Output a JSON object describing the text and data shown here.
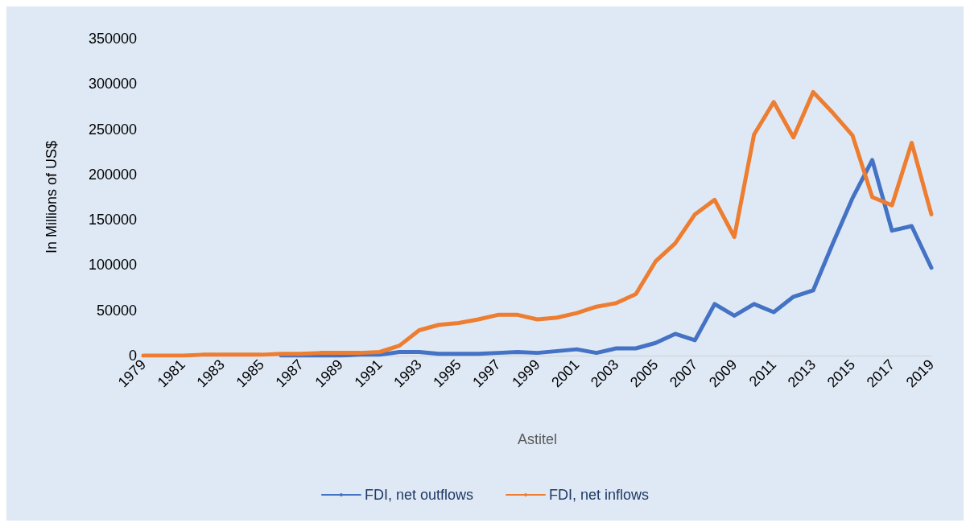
{
  "chart_data": {
    "type": "line",
    "xlabel": "Astitel",
    "ylabel": "In Millions of US$",
    "categories": [
      "1979",
      null,
      "1981",
      null,
      "1983",
      null,
      "1985",
      null,
      "1987",
      null,
      "1989",
      null,
      "1991",
      null,
      "1993",
      null,
      "1995",
      null,
      "1997",
      null,
      "1999",
      null,
      "2001",
      null,
      "2003",
      null,
      "2005",
      null,
      "2007",
      null,
      "2009",
      null,
      "2011",
      null,
      "2013",
      null,
      "2015",
      null,
      "2017",
      null,
      "2019"
    ],
    "series": [
      {
        "name": "FDI, net outflows",
        "color": "#4472c4",
        "values": [
          null,
          null,
          null,
          null,
          null,
          null,
          null,
          0,
          0,
          0,
          0,
          1000,
          1000,
          4000,
          4000,
          2000,
          2000,
          2000,
          3000,
          4000,
          3000,
          5000,
          7000,
          3000,
          8000,
          8000,
          14000,
          24000,
          17000,
          57000,
          44000,
          57000,
          48000,
          65000,
          72000,
          124000,
          174000,
          216000,
          138000,
          143000,
          97000
        ]
      },
      {
        "name": "FDI, net inflows",
        "color": "#ed7d31",
        "values": [
          0,
          0,
          0,
          1000,
          1000,
          1000,
          1000,
          2000,
          2000,
          3000,
          3000,
          3000,
          4000,
          11000,
          28000,
          34000,
          36000,
          40000,
          45000,
          45000,
          40000,
          42000,
          47000,
          54000,
          58000,
          68000,
          104000,
          124000,
          156000,
          172000,
          131000,
          244000,
          280000,
          241000,
          291000,
          268000,
          243000,
          175000,
          166000,
          235000,
          156000
        ]
      }
    ],
    "ylim": [
      0,
      350000
    ],
    "yticks": [
      0,
      50000,
      100000,
      150000,
      200000,
      250000,
      300000,
      350000
    ],
    "grid": false,
    "legend": "bottom",
    "marker": "none",
    "line_style": "solid"
  }
}
